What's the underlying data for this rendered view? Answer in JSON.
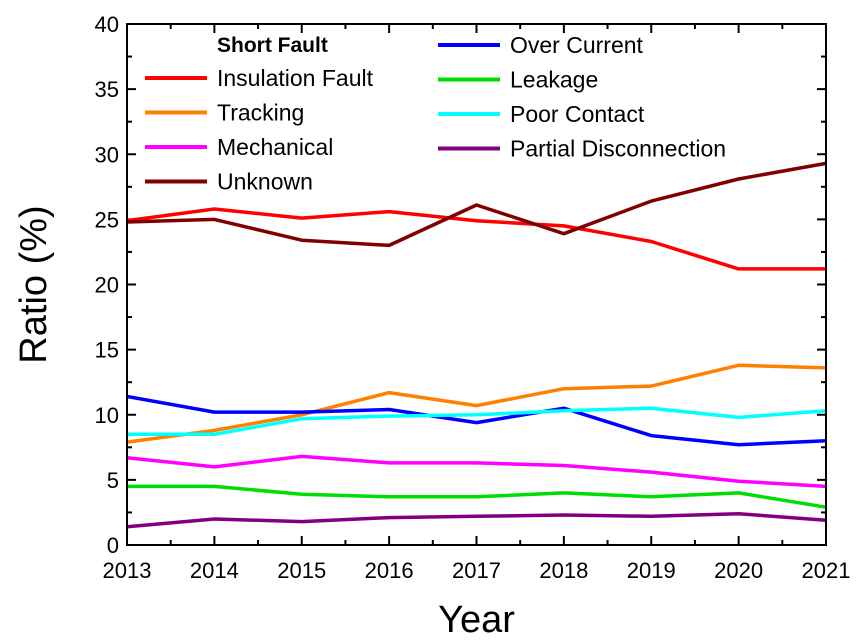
{
  "chart_data": {
    "type": "line",
    "xlabel": "Year",
    "ylabel": "Ratio (%)",
    "xlim": [
      2013,
      2021
    ],
    "ylim": [
      0,
      40
    ],
    "x_ticks": [
      "2013",
      "2014",
      "2015",
      "2016",
      "2017",
      "2018",
      "2019",
      "2020",
      "2021"
    ],
    "y_ticks": [
      "0",
      "5",
      "10",
      "15",
      "20",
      "25",
      "30",
      "35",
      "40"
    ],
    "legend_group_title": "Short Fault",
    "legend_placement": "top",
    "grid": false,
    "x": [
      2013,
      2014,
      2015,
      2016,
      2017,
      2018,
      2019,
      2020,
      2021
    ],
    "series": [
      {
        "name": "Insulation Fault",
        "color": "#ff0000",
        "values": [
          24.9,
          25.8,
          25.1,
          25.6,
          24.9,
          24.5,
          23.3,
          21.2,
          21.2
        ]
      },
      {
        "name": "Tracking",
        "color": "#ff8000",
        "values": [
          7.9,
          8.8,
          10.0,
          11.7,
          10.7,
          12.0,
          12.2,
          13.8,
          13.6
        ]
      },
      {
        "name": "Mechanical",
        "color": "#ff00ff",
        "values": [
          6.7,
          6.0,
          6.8,
          6.3,
          6.3,
          6.1,
          5.6,
          4.9,
          4.5
        ]
      },
      {
        "name": "Unknown",
        "color": "#800000",
        "values": [
          24.8,
          25.0,
          23.4,
          23.0,
          26.1,
          23.9,
          26.4,
          28.1,
          29.3
        ]
      },
      {
        "name": "Over Current",
        "color": "#0000ff",
        "values": [
          11.4,
          10.2,
          10.2,
          10.4,
          9.4,
          10.5,
          8.4,
          7.7,
          8.0
        ]
      },
      {
        "name": "Leakage",
        "color": "#00dd00",
        "values": [
          4.5,
          4.5,
          3.9,
          3.7,
          3.7,
          4.0,
          3.7,
          4.0,
          2.9
        ]
      },
      {
        "name": "Poor Contact",
        "color": "#00ffff",
        "values": [
          8.5,
          8.5,
          9.7,
          9.9,
          10.0,
          10.3,
          10.5,
          9.8,
          10.3
        ]
      },
      {
        "name": "Partial Disconnection",
        "color": "#800080",
        "values": [
          1.4,
          2.0,
          1.8,
          2.1,
          2.2,
          2.3,
          2.2,
          2.4,
          1.9
        ]
      }
    ]
  }
}
